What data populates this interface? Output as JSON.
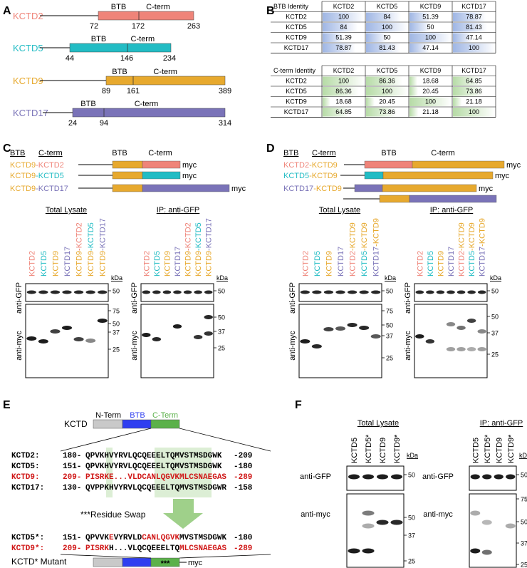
{
  "colors": {
    "kctd2": "#ef8479",
    "kctd5": "#22bcc4",
    "kctd9": "#e7a92e",
    "kctd17": "#7a73b8",
    "blue_grad": "#a9bde6",
    "green_grad": "#bfe0b3",
    "red_text": "#d01818",
    "btb_blue": "#2f3ef0",
    "cterm_green": "#5bb14a",
    "arrow_green": "#9fd08a"
  },
  "panelA": {
    "label": "A",
    "rows": [
      {
        "name": "KCTD2",
        "btb": "BTB",
        "cterm": "C-term",
        "n1": "72",
        "n2": "172",
        "n3": "263"
      },
      {
        "name": "KCTD5",
        "btb": "BTB",
        "cterm": "C-term",
        "n1": "44",
        "n2": "146",
        "n3": "234"
      },
      {
        "name": "KCTD9",
        "btb": "BTB",
        "cterm": "C-term",
        "n1": "89",
        "n2": "161",
        "n3": "389"
      },
      {
        "name": "KCTD17",
        "btb": "BTB",
        "cterm": "C-term",
        "n1": "24",
        "n2": "94",
        "n3": "314"
      }
    ]
  },
  "panelB": {
    "label": "B",
    "btb": {
      "title": "BTB Identity",
      "cols": [
        "KCTD2",
        "KCTD5",
        "KCTD9",
        "KCTD17"
      ],
      "rows": [
        {
          "name": "KCTD2",
          "values": [
            "100",
            "84",
            "51.39",
            "78.87"
          ]
        },
        {
          "name": "KCTD5",
          "values": [
            "84",
            "100",
            "50",
            "81.43"
          ]
        },
        {
          "name": "KCTD9",
          "values": [
            "51.39",
            "50",
            "100",
            "47.14"
          ]
        },
        {
          "name": "KCTD17",
          "values": [
            "78.87",
            "81.43",
            "47.14",
            "100"
          ]
        }
      ]
    },
    "cterm": {
      "title": "C-term Identity",
      "cols": [
        "KCTD2",
        "KCTD5",
        "KCTD9",
        "KCTD17"
      ],
      "rows": [
        {
          "name": "KCTD2",
          "values": [
            "100",
            "86.36",
            "18.68",
            "64.85"
          ]
        },
        {
          "name": "KCTD5",
          "values": [
            "86.36",
            "100",
            "20.45",
            "73.86"
          ]
        },
        {
          "name": "KCTD9",
          "values": [
            "18.68",
            "20.45",
            "100",
            "21.18"
          ]
        },
        {
          "name": "KCTD17",
          "values": [
            "64.85",
            "73.86",
            "21.18",
            "100"
          ]
        }
      ]
    }
  },
  "panelC": {
    "label": "C",
    "hdr_btb": "BTB",
    "hdr_cterm": "C-term",
    "diag_btb": "BTB",
    "diag_cterm": "C-term",
    "myc": "myc",
    "chimeras": [
      {
        "a": "KCTD9",
        "b": "KCTD2"
      },
      {
        "a": "KCTD9",
        "b": "KCTD5"
      },
      {
        "a": "KCTD9",
        "b": "KCTD17"
      }
    ],
    "total_title": "Total Lysate",
    "ip_title": "IP: anti-GFP",
    "lanes": [
      "KCTD2",
      "KCTD5",
      "KCTD9",
      "KCTD17",
      "KCTD9-KCTD2",
      "KCTD9-KCTD5",
      "KCTD9-KCTD17"
    ],
    "kda": "kDa",
    "gfp_label": "anti-GFP",
    "myc_label": "anti-myc",
    "gfp_marker": "50",
    "myc_markers": [
      "75",
      "50",
      "37",
      "25"
    ],
    "ip_myc_markers": [
      "50",
      "37",
      "25"
    ]
  },
  "panelD": {
    "label": "D",
    "hdr_btb": "BTB",
    "hdr_cterm": "C-term",
    "diag_btb": "BTB",
    "diag_cterm": "C-term",
    "myc": "myc",
    "chimeras": [
      {
        "a": "KCTD2",
        "b": "KCTD9"
      },
      {
        "a": "KCTD5",
        "b": "KCTD9"
      },
      {
        "a": "KCTD17",
        "b": "KCTD9"
      }
    ],
    "total_title": "Total Lysate",
    "ip_title": "IP: anti-GFP",
    "lanes": [
      "KCTD2",
      "KCTD5",
      "KCTD9",
      "KCTD17",
      "KCTD2-KCTD9",
      "KCTD5-KCTD9",
      "KCTD17-KCTD9"
    ],
    "kda": "kDa",
    "gfp_label": "anti-GFP",
    "myc_label": "anti-myc",
    "gfp_marker": "50",
    "myc_markers": [
      "75",
      "50",
      "37",
      "25"
    ],
    "ip_myc_markers": [
      "50",
      "37",
      "25"
    ]
  },
  "panelE": {
    "label": "E",
    "kctd": "KCTD",
    "nterm": "N-Term",
    "btb": "BTB",
    "cterm": "C-Term",
    "seqs": [
      {
        "name": "KCTD2:",
        "start": "180-",
        "seq": "QPVKHVYRVLQCQEEELTQMVSTMSDGWK",
        "end": "-209",
        "red": false
      },
      {
        "name": "KCTD5:",
        "start": "151-",
        "seq": "QPVKHVYRVLQCQEEELTQMVSTMSDGWK",
        "end": "-180",
        "red": false
      },
      {
        "name": "KCTD9:",
        "start": "209-",
        "seq": "PISRKE...VLDCANLQGVKMLCSNAEGAS",
        "end": "-289",
        "red": true
      },
      {
        "name": "KCTD17:",
        "start": "130-",
        "seq": "QVPPKHVYRVLQCQEEELTQMVSTMSDGWR",
        "end": "-158",
        "red": false
      }
    ],
    "swap_label": "***Residue Swap",
    "mut5": {
      "name": "KCTD5*:",
      "start": "151-",
      "s1": "QPVVK",
      "s2": "E",
      "s3": "VYRVLD",
      "s4": "CANLQGVK",
      "s5": "MVSTMSDGWK",
      "end": "-180"
    },
    "mut9": {
      "name": "KCTD9*:",
      "start": "209-",
      "s1": "PISRK",
      "s2": "H...VLQ",
      "s3": "CQEEELTQ",
      "s4": "MLCSNAEGAS",
      "end": "-289"
    },
    "mutant_label": "KCTD* Mutant",
    "stars": "***",
    "myc": "myc"
  },
  "panelF": {
    "label": "F",
    "total_title": "Total Lysate",
    "ip_title": "IP: anti-GFP",
    "lanes": [
      "KCTD5",
      "KCTD5*",
      "KCTD9",
      "KCTD9*"
    ],
    "kda": "kDa",
    "gfp_label": "anti-GFP",
    "myc_label": "anti-myc",
    "gfp_marker": "50",
    "total_markers": [
      "50",
      "37",
      "25"
    ],
    "ip_markers": [
      "75",
      "50",
      "37",
      "25"
    ]
  }
}
